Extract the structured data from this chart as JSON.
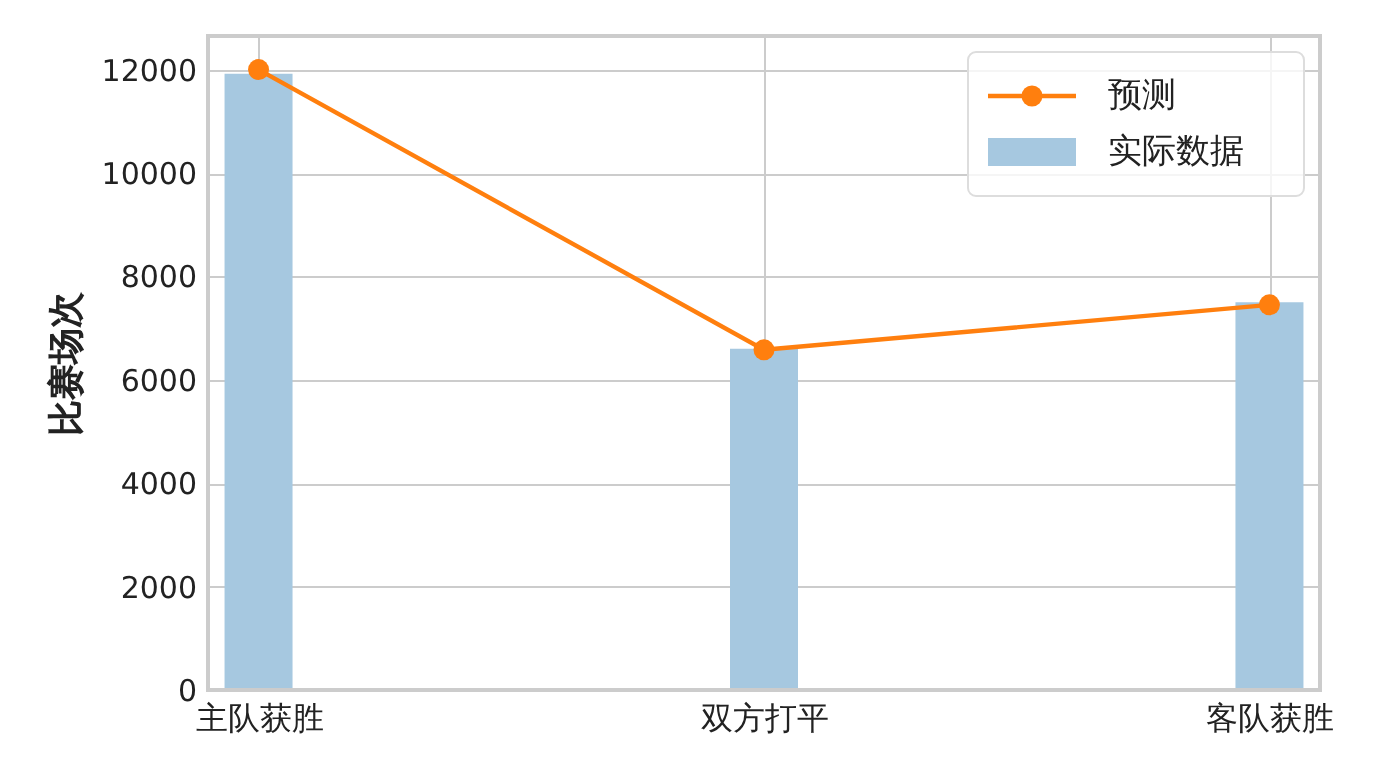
{
  "chart_data": {
    "type": "bar",
    "ylabel": "比赛场次",
    "categories": [
      "主队获胜",
      "双方打平",
      "客队获胜"
    ],
    "series": [
      {
        "name": "预测",
        "type": "line",
        "color": "#ff7f0e",
        "marker": "circle",
        "values": [
          12000,
          6580,
          7450
        ]
      },
      {
        "name": "实际数据",
        "color": "#a6c8e0",
        "values": [
          11920,
          6600,
          7500
        ]
      }
    ],
    "ylim": [
      0,
      12650
    ],
    "yticks": [
      0,
      2000,
      4000,
      6000,
      8000,
      10000,
      12000
    ],
    "grid": true,
    "legend": "top right"
  }
}
